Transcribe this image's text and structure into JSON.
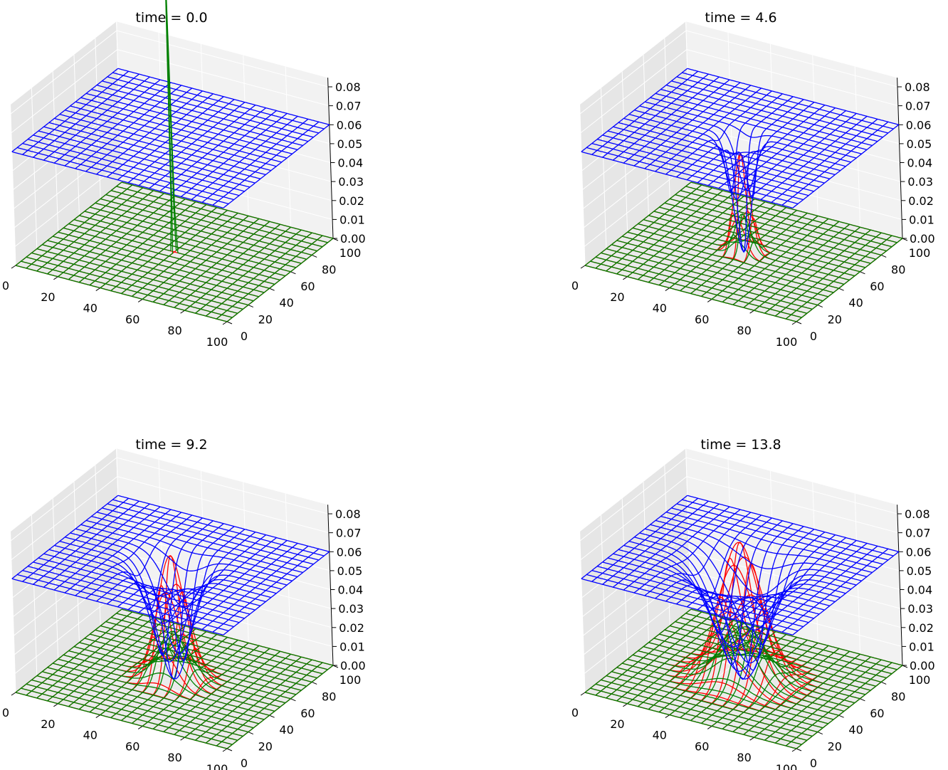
{
  "chart_data": [
    {
      "type": "surface3d-wireframe",
      "title": "time = 0.0",
      "x_ticks": [
        "0",
        "20",
        "40",
        "60",
        "80",
        "100"
      ],
      "y_ticks": [
        "0",
        "20",
        "40",
        "60",
        "80",
        "100"
      ],
      "z_ticks": [
        "0.00",
        "0.01",
        "0.02",
        "0.03",
        "0.04",
        "0.05",
        "0.06",
        "0.07",
        "0.08"
      ],
      "xlim": [
        0,
        100
      ],
      "ylim": [
        0,
        100
      ],
      "zlim": [
        0,
        0.08
      ],
      "grid": true,
      "series": [
        {
          "color": "#0000ff",
          "baseline": 0.06,
          "peak_center": [
            50,
            50
          ],
          "peak_amplitude": 0.0,
          "peak_width": 0
        },
        {
          "color": "#ff0000",
          "baseline": 0.0,
          "peak_center": [
            50,
            50
          ],
          "peak_amplitude": 0.0,
          "peak_width": 0
        },
        {
          "color": "#008000",
          "baseline": 0.0,
          "peak_center": [
            50,
            50
          ],
          "peak_amplitude": 0.16,
          "peak_width": 0.6
        }
      ]
    },
    {
      "type": "surface3d-wireframe",
      "title": "time = 4.6",
      "x_ticks": [
        "0",
        "20",
        "40",
        "60",
        "80",
        "100"
      ],
      "y_ticks": [
        "0",
        "20",
        "40",
        "60",
        "80",
        "100"
      ],
      "z_ticks": [
        "0.00",
        "0.01",
        "0.02",
        "0.03",
        "0.04",
        "0.05",
        "0.06",
        "0.07",
        "0.08"
      ],
      "xlim": [
        0,
        100
      ],
      "ylim": [
        0,
        100
      ],
      "zlim": [
        0,
        0.08
      ],
      "grid": true,
      "series": [
        {
          "color": "#ff0000",
          "baseline": 0.0,
          "peak_center": [
            50,
            50
          ],
          "peak_amplitude": 0.052,
          "peak_width": 5
        },
        {
          "color": "#008000",
          "baseline": 0.0,
          "peak_center": [
            50,
            50
          ],
          "peak_amplitude": 0.02,
          "peak_width": 5
        },
        {
          "color": "#0000ff",
          "baseline": 0.06,
          "peak_center": [
            50,
            50
          ],
          "peak_amplitude": -0.06,
          "peak_width": 6
        }
      ]
    },
    {
      "type": "surface3d-wireframe",
      "title": "time = 9.2",
      "x_ticks": [
        "0",
        "20",
        "40",
        "60",
        "80",
        "100"
      ],
      "y_ticks": [
        "0",
        "20",
        "40",
        "60",
        "80",
        "100"
      ],
      "z_ticks": [
        "0.00",
        "0.01",
        "0.02",
        "0.03",
        "0.04",
        "0.05",
        "0.06",
        "0.07",
        "0.08"
      ],
      "xlim": [
        0,
        100
      ],
      "ylim": [
        0,
        100
      ],
      "zlim": [
        0,
        0.08
      ],
      "grid": true,
      "series": [
        {
          "color": "#ff0000",
          "baseline": 0.0,
          "peak_center": [
            50,
            50
          ],
          "peak_amplitude": 0.065,
          "peak_width": 9
        },
        {
          "color": "#008000",
          "baseline": 0.0,
          "peak_center": [
            50,
            50
          ],
          "peak_amplitude": 0.025,
          "peak_width": 9
        },
        {
          "color": "#0000ff",
          "baseline": 0.06,
          "peak_center": [
            50,
            50
          ],
          "peak_amplitude": -0.06,
          "peak_width": 11
        }
      ]
    },
    {
      "type": "surface3d-wireframe",
      "title": "time = 13.8",
      "x_ticks": [
        "0",
        "20",
        "40",
        "60",
        "80",
        "100"
      ],
      "y_ticks": [
        "0",
        "20",
        "40",
        "60",
        "80",
        "100"
      ],
      "z_ticks": [
        "0.00",
        "0.01",
        "0.02",
        "0.03",
        "0.04",
        "0.05",
        "0.06",
        "0.07",
        "0.08"
      ],
      "xlim": [
        0,
        100
      ],
      "ylim": [
        0,
        100
      ],
      "zlim": [
        0,
        0.08
      ],
      "grid": true,
      "series": [
        {
          "color": "#ff0000",
          "baseline": 0.0,
          "peak_center": [
            50,
            50
          ],
          "peak_amplitude": 0.072,
          "peak_width": 13
        },
        {
          "color": "#008000",
          "baseline": 0.0,
          "peak_center": [
            50,
            50
          ],
          "peak_amplitude": 0.03,
          "peak_width": 12
        },
        {
          "color": "#0000ff",
          "baseline": 0.06,
          "peak_center": [
            50,
            50
          ],
          "peak_amplitude": -0.06,
          "peak_width": 15
        }
      ]
    }
  ]
}
